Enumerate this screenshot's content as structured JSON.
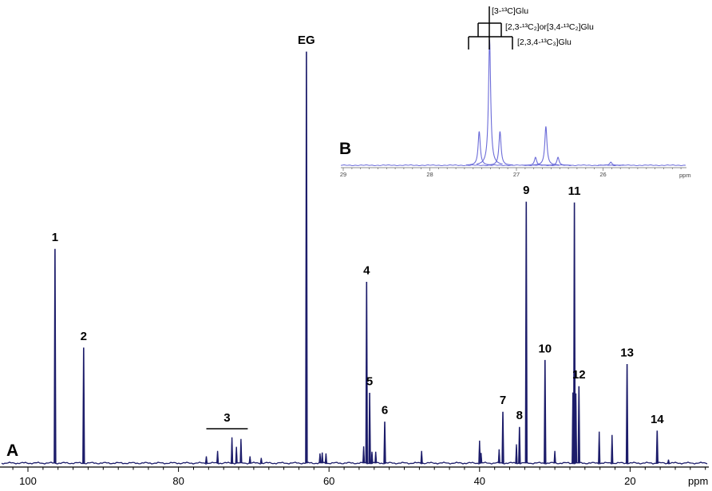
{
  "colors": {
    "main_spectrum": "#1c1c6a",
    "inset_spectrum": "#6b6bd8",
    "axis": "#000000"
  },
  "chart_data": [
    {
      "type": "line",
      "panel_label": "A",
      "title": "",
      "xlabel": "ppm",
      "ylabel": "",
      "x_reversed": true,
      "xlim": [
        103.7,
        9.6
      ],
      "ylim": [
        0,
        100
      ],
      "x_ticks": [
        100,
        80,
        60,
        40,
        20
      ],
      "grid": false,
      "legend": "none",
      "peaks": [
        {
          "label": "1",
          "ppm": 96.4,
          "intensity": 52
        },
        {
          "label": "2",
          "ppm": 92.6,
          "intensity": 28
        },
        {
          "label": "EG",
          "ppm": 63.0,
          "intensity": 100
        },
        {
          "label": "4",
          "ppm": 55.0,
          "intensity": 44
        },
        {
          "label": "5",
          "ppm": 54.6,
          "intensity": 17
        },
        {
          "label": "6",
          "ppm": 52.6,
          "intensity": 10
        },
        {
          "label": "7",
          "ppm": 36.9,
          "intensity": 12.4
        },
        {
          "label": "8",
          "ppm": 34.7,
          "intensity": 8.7
        },
        {
          "label": "9",
          "ppm": 33.8,
          "intensity": 63.5
        },
        {
          "label": "10",
          "ppm": 31.3,
          "intensity": 25
        },
        {
          "label": "11",
          "ppm": 27.4,
          "intensity": 63.3
        },
        {
          "label": "12",
          "ppm": 26.8,
          "intensity": 18.6
        },
        {
          "label": "13",
          "ppm": 20.4,
          "intensity": 24
        },
        {
          "label": "14",
          "ppm": 16.4,
          "intensity": 7.8
        }
      ],
      "region_labels": [
        {
          "label": "3",
          "from_ppm": 76.3,
          "to_ppm": 70.8
        }
      ],
      "minor_peaks": [
        {
          "ppm": 76.3,
          "intensity": 1.6
        },
        {
          "ppm": 74.8,
          "intensity": 2.9
        },
        {
          "ppm": 72.9,
          "intensity": 6.2
        },
        {
          "ppm": 72.3,
          "intensity": 3.9
        },
        {
          "ppm": 71.7,
          "intensity": 5.8
        },
        {
          "ppm": 70.5,
          "intensity": 1.6
        },
        {
          "ppm": 69.0,
          "intensity": 1.2
        },
        {
          "ppm": 61.2,
          "intensity": 2.3
        },
        {
          "ppm": 60.9,
          "intensity": 2.5
        },
        {
          "ppm": 60.4,
          "intensity": 2.3
        },
        {
          "ppm": 55.4,
          "intensity": 4.0
        },
        {
          "ppm": 54.3,
          "intensity": 2.7
        },
        {
          "ppm": 53.8,
          "intensity": 2.7
        },
        {
          "ppm": 47.7,
          "intensity": 2.9
        },
        {
          "ppm": 40.0,
          "intensity": 5.4
        },
        {
          "ppm": 39.8,
          "intensity": 2.4
        },
        {
          "ppm": 37.4,
          "intensity": 3.3
        },
        {
          "ppm": 35.1,
          "intensity": 4.5
        },
        {
          "ppm": 30.0,
          "intensity": 2.9
        },
        {
          "ppm": 27.6,
          "intensity": 17.1
        },
        {
          "ppm": 27.2,
          "intensity": 16.9
        },
        {
          "ppm": 24.1,
          "intensity": 7.6
        },
        {
          "ppm": 22.4,
          "intensity": 6.8
        },
        {
          "ppm": 14.9,
          "intensity": 0.8
        }
      ]
    },
    {
      "type": "line",
      "panel_label": "B",
      "title": "",
      "xlabel": "ppm",
      "ylabel": "",
      "x_reversed": true,
      "xlim": [
        29.03,
        25.04
      ],
      "ylim": [
        0,
        100
      ],
      "x_ticks": [
        29,
        28,
        27,
        26
      ],
      "grid": false,
      "legend": "none",
      "peaks": [
        {
          "ppm": 27.43,
          "intensity": 27
        },
        {
          "ppm": 27.31,
          "intensity": 100
        },
        {
          "ppm": 27.19,
          "intensity": 27
        },
        {
          "ppm": 26.78,
          "intensity": 6.4
        },
        {
          "ppm": 26.66,
          "intensity": 31
        },
        {
          "ppm": 26.52,
          "intensity": 6.4
        },
        {
          "ppm": 25.91,
          "intensity": 2.5
        }
      ],
      "annotations": [
        {
          "text": "[3-¹³C]Glu"
        },
        {
          "text": "[2,3-¹³C₂]or[3,4-¹³C₂]Glu"
        },
        {
          "text": "[2,3,4-¹³C₃]Glu"
        }
      ]
    }
  ]
}
